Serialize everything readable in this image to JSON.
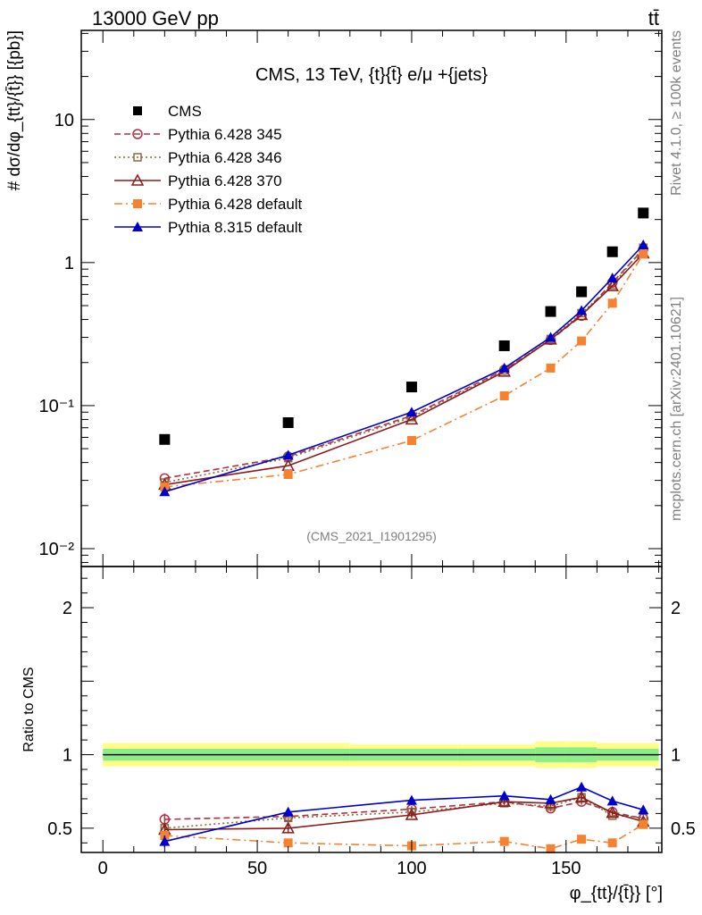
{
  "header": {
    "energy_label": "13000 GeV pp",
    "process_label": "tt̄"
  },
  "side_labels": {
    "rivet": "Rivet 4.1.0, ≥ 100k events",
    "mcplots": "mcplots.cern.ch [arXiv:2401.10621]"
  },
  "chart_data": [
    {
      "type": "scatter",
      "panel": "main",
      "title": "CMS, 13 TeV, {t}{t̄} e/μ +{jets}",
      "ylabel": "# dσ/dφ_{tt}/{t̄}} [{pb}]",
      "yscale": "log",
      "xlim": [
        -7,
        181
      ],
      "ylim": [
        0.0075,
        42
      ],
      "yticks": [
        {
          "value": 10,
          "label": "10"
        },
        {
          "value": 1,
          "label": "1"
        },
        {
          "value": 0.1,
          "label": "10⁻¹"
        },
        {
          "value": 0.01,
          "label": "10⁻²"
        }
      ],
      "watermark": "(CMS_2021_I1901295)",
      "legend_position": "top-left",
      "series": [
        {
          "name": "CMS",
          "color": "#000000",
          "marker": "square",
          "line": "none",
          "x": [
            20,
            60,
            100,
            130,
            145,
            155,
            165,
            175
          ],
          "y": [
            0.058,
            0.076,
            0.135,
            0.262,
            0.455,
            0.625,
            1.19,
            2.22
          ]
        },
        {
          "name": "Pythia 6.428 345",
          "color": "#b03040",
          "marker": "circle-open",
          "line": "dashed",
          "x": [
            20,
            60,
            100,
            130,
            145,
            155,
            165,
            175
          ],
          "y": [
            0.031,
            0.044,
            0.085,
            0.178,
            0.288,
            0.425,
            0.725,
            1.24
          ]
        },
        {
          "name": "Pythia 6.428 346",
          "color": "#8b6a3a",
          "marker": "square-open",
          "line": "dotted",
          "x": [
            20,
            60,
            100,
            130,
            145,
            155,
            165,
            175
          ],
          "y": [
            0.029,
            0.043,
            0.083,
            0.176,
            0.292,
            0.443,
            0.695,
            1.27
          ]
        },
        {
          "name": "Pythia 6.428 370",
          "color": "#8b1a1a",
          "marker": "triangle-open",
          "line": "solid",
          "x": [
            20,
            60,
            100,
            130,
            145,
            155,
            165,
            175
          ],
          "y": [
            0.028,
            0.038,
            0.08,
            0.173,
            0.29,
            0.43,
            0.685,
            1.16
          ]
        },
        {
          "name": "Pythia 6.428 default",
          "color": "#f58231",
          "marker": "square",
          "line": "dashdot",
          "x": [
            20,
            60,
            100,
            130,
            145,
            155,
            165,
            175
          ],
          "y": [
            0.027,
            0.033,
            0.057,
            0.117,
            0.183,
            0.283,
            0.52,
            1.15
          ]
        },
        {
          "name": "Pythia 8.315 default",
          "color": "#0000cc",
          "marker": "triangle",
          "line": "solid",
          "x": [
            20,
            60,
            100,
            130,
            145,
            155,
            165,
            175
          ],
          "y": [
            0.025,
            0.045,
            0.09,
            0.183,
            0.3,
            0.462,
            0.78,
            1.33
          ]
        }
      ]
    },
    {
      "type": "scatter",
      "panel": "ratio",
      "ylabel": "Ratio to CMS",
      "xlabel": "φ_{tt}/{t̄}} [°]",
      "xlim": [
        -7,
        181
      ],
      "ylim": [
        0.335,
        2.28
      ],
      "xticks": [
        0,
        50,
        100,
        150
      ],
      "yticks": [
        0.5,
        1,
        2
      ],
      "uncertainty_band": {
        "x_edges": [
          0,
          40,
          80,
          115,
          140,
          150,
          160,
          170,
          180
        ],
        "outer_lo": [
          0.92,
          0.92,
          0.92,
          0.92,
          0.91,
          0.91,
          0.92,
          0.92
        ],
        "outer_hi": [
          1.08,
          1.08,
          1.07,
          1.07,
          1.09,
          1.09,
          1.08,
          1.08
        ],
        "inner_lo": [
          0.96,
          0.96,
          0.96,
          0.96,
          0.95,
          0.95,
          0.96,
          0.96
        ],
        "inner_hi": [
          1.04,
          1.04,
          1.04,
          1.04,
          1.05,
          1.05,
          1.04,
          1.04
        ],
        "outer_color": "#ffff88",
        "inner_color": "#88ee88"
      },
      "series": [
        {
          "name": "Pythia 6.428 345",
          "color": "#b03040",
          "marker": "circle-open",
          "line": "dashed",
          "x": [
            20,
            60,
            100,
            130,
            145,
            155,
            165,
            175
          ],
          "y": [
            0.56,
            0.58,
            0.63,
            0.68,
            0.635,
            0.68,
            0.61,
            0.565
          ],
          "err": [
            0.04,
            0.03,
            0.02,
            0.02,
            0.02,
            0.02,
            0.015,
            0.015
          ]
        },
        {
          "name": "Pythia 6.428 346",
          "color": "#8b6a3a",
          "marker": "square-open",
          "line": "dotted",
          "x": [
            20,
            60,
            100,
            130,
            145,
            155,
            165,
            175
          ],
          "y": [
            0.5,
            0.57,
            0.61,
            0.67,
            0.65,
            0.71,
            0.585,
            0.575
          ],
          "err": [
            0.03,
            0.03,
            0.02,
            0.02,
            0.02,
            0.02,
            0.015,
            0.015
          ]
        },
        {
          "name": "Pythia 6.428 370",
          "color": "#8b1a1a",
          "marker": "triangle-open",
          "line": "solid",
          "x": [
            20,
            60,
            100,
            130,
            145,
            155,
            165,
            175
          ],
          "y": [
            0.49,
            0.5,
            0.59,
            0.68,
            0.67,
            0.71,
            0.605,
            0.545
          ],
          "err": [
            0.03,
            0.03,
            0.02,
            0.02,
            0.02,
            0.02,
            0.015,
            0.015
          ]
        },
        {
          "name": "Pythia 6.428 default",
          "color": "#f58231",
          "marker": "square",
          "line": "dashdot",
          "x": [
            20,
            60,
            100,
            130,
            145,
            155,
            165,
            175
          ],
          "y": [
            0.45,
            0.4,
            0.38,
            0.41,
            0.36,
            0.425,
            0.4,
            0.525
          ],
          "err": [
            0.02,
            0.02,
            0.02,
            0.02,
            0.02,
            0.02,
            0.015,
            0.015
          ]
        },
        {
          "name": "Pythia 8.315 default",
          "color": "#0000cc",
          "marker": "triangle",
          "line": "solid",
          "x": [
            20,
            60,
            100,
            130,
            145,
            155,
            165,
            175
          ],
          "y": [
            0.41,
            0.61,
            0.69,
            0.72,
            0.695,
            0.78,
            0.685,
            0.625
          ],
          "err": [
            0.04,
            0.03,
            0.02,
            0.02,
            0.02,
            0.02,
            0.015,
            0.015
          ]
        }
      ]
    }
  ]
}
